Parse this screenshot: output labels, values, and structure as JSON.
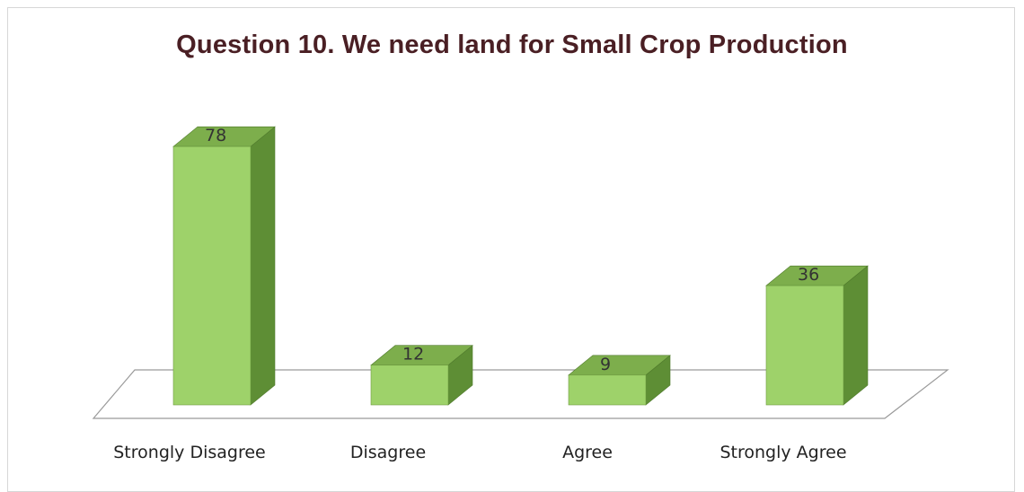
{
  "chart_data": {
    "type": "bar",
    "title": "Question 10. We need land for Small Crop Production",
    "categories": [
      "Strongly Disagree",
      "Disagree",
      "Agree",
      "Strongly  Agree"
    ],
    "values": [
      78,
      12,
      9,
      36
    ],
    "data_labels": [
      "78",
      "12",
      "9",
      "36"
    ],
    "xlabel": "",
    "ylabel": "",
    "grid": false,
    "legend": "none",
    "style": "3d-column",
    "colors": {
      "front": "#9ed26a",
      "top": "#7dae4c",
      "side": "#5e8e35",
      "floor": "#9a9a9a"
    }
  }
}
